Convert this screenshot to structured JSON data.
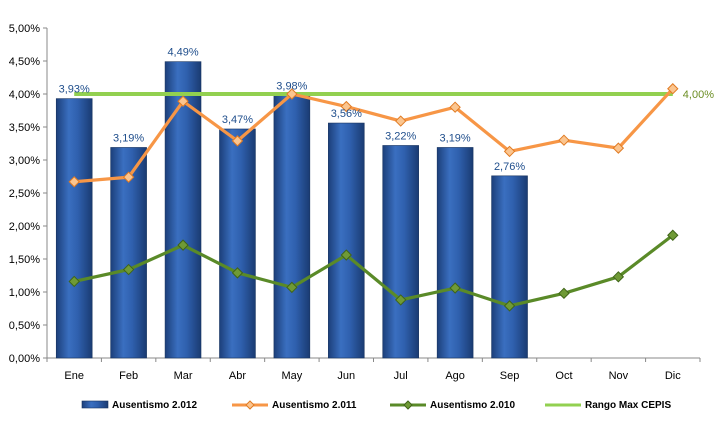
{
  "chart_data": {
    "type": "bar",
    "categories": [
      "Ene",
      "Feb",
      "Mar",
      "Abr",
      "May",
      "Jun",
      "Jul",
      "Ago",
      "Sep",
      "Oct",
      "Nov",
      "Dic"
    ],
    "ylim": [
      0,
      5
    ],
    "y_ticks": [
      "0,00%",
      "0,50%",
      "1,00%",
      "1,50%",
      "2,00%",
      "2,50%",
      "3,00%",
      "3,50%",
      "4,00%",
      "4,50%",
      "5,00%"
    ],
    "grid": false,
    "legend_position": "bottom",
    "series": [
      {
        "name": "Ausentismo 2.012",
        "type": "bar",
        "color": "#2e5ea8",
        "values": [
          3.93,
          3.19,
          4.49,
          3.47,
          3.98,
          3.56,
          3.22,
          3.19,
          2.76,
          null,
          null,
          null
        ],
        "labels": [
          "3,93%",
          "3,19%",
          "4,49%",
          "3,47%",
          "3,98%",
          "3,56%",
          "3,22%",
          "3,19%",
          "2,76%",
          "",
          "",
          ""
        ]
      },
      {
        "name": "Ausentismo 2.011",
        "type": "line",
        "color": "#f79646",
        "values": [
          2.67,
          2.74,
          3.89,
          3.29,
          4.0,
          3.81,
          3.59,
          3.8,
          3.13,
          3.3,
          3.18,
          4.08
        ]
      },
      {
        "name": "Ausentismo 2.010",
        "type": "line",
        "color": "#5a8a28",
        "values": [
          1.16,
          1.34,
          1.71,
          1.29,
          1.07,
          1.56,
          0.88,
          1.06,
          0.79,
          0.98,
          1.23,
          1.86
        ]
      },
      {
        "name": "Rango Max CEPIS",
        "type": "line",
        "color": "#92d050",
        "values": [
          4.0,
          4.0,
          4.0,
          4.0,
          4.0,
          4.0,
          4.0,
          4.0,
          4.0,
          4.0,
          4.0,
          4.0
        ],
        "end_label": "4,00%"
      }
    ]
  }
}
